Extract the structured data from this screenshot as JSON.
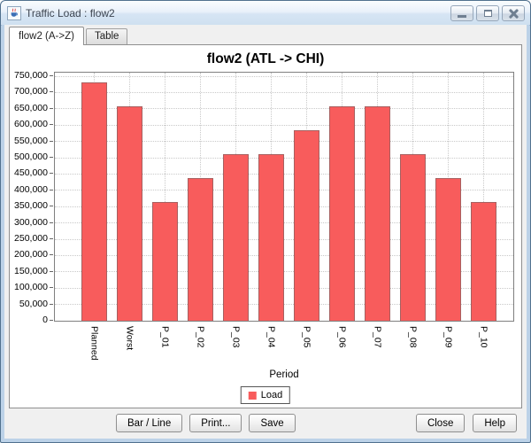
{
  "window": {
    "title": "Traffic Load : flow2",
    "icons": {
      "app": "java-coffee-cup-icon",
      "minimize": "minimize-icon",
      "maximize": "maximize-icon",
      "close": "close-icon"
    }
  },
  "tabs": [
    {
      "label": "flow2 (A->Z)",
      "active": true
    },
    {
      "label": "Table",
      "active": false
    }
  ],
  "footer": {
    "left_buttons": [
      "Bar / Line",
      "Print...",
      "Save"
    ],
    "right_buttons": [
      "Close",
      "Help"
    ]
  },
  "chart_data": {
    "type": "bar",
    "title": "flow2 (ATL -> CHI)",
    "xlabel": "Period",
    "ylabel": "",
    "categories": [
      "Planned",
      "Worst",
      "P_01",
      "P_02",
      "P_03",
      "P_04",
      "P_05",
      "P_06",
      "P_07",
      "P_08",
      "P_09",
      "P_10"
    ],
    "values": [
      730000,
      657000,
      365000,
      438000,
      511000,
      511000,
      584000,
      657000,
      657000,
      511000,
      438000,
      365000
    ],
    "ylim": [
      0,
      750000
    ],
    "ytick_step": 50000,
    "grid": "dotted-both",
    "x_tick_rotation": 90,
    "bar_color": "#f85c5c",
    "legend": {
      "position": "bottom",
      "entries": [
        {
          "label": "Load",
          "color": "#f85c5c"
        }
      ]
    }
  },
  "colors": {
    "bar": "#f85c5c",
    "gridline": "#c9c9c9",
    "plot_border": "#7f7f7f",
    "titlebar_border": "#51718e",
    "window_frame": "#bcd2e8",
    "panel_bg": "#f0f0f0"
  }
}
